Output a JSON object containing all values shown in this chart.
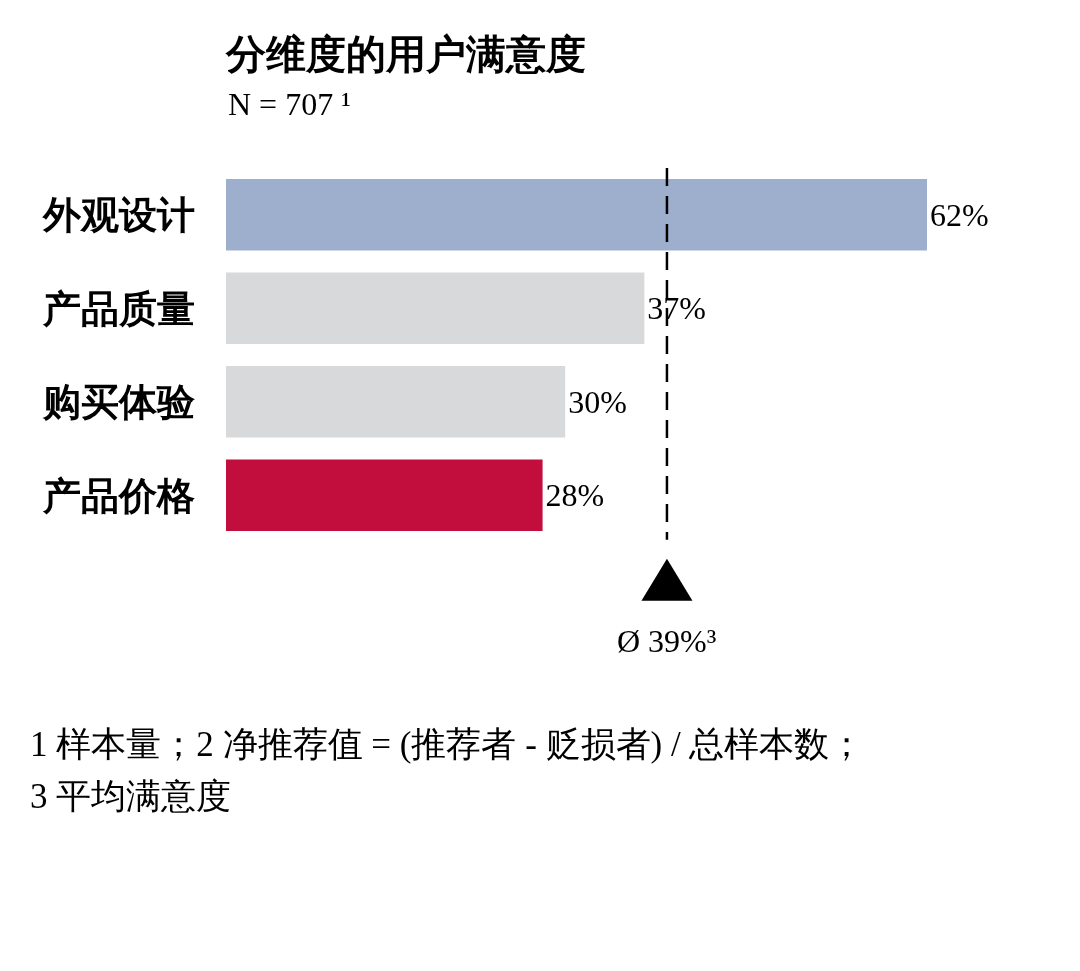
{
  "chart_data": {
    "type": "bar",
    "orientation": "horizontal",
    "title": "分维度的用户满意度",
    "subtitle": "N = 707 ¹",
    "categories": [
      "外观设计",
      "产品质量",
      "购买体验",
      "产品价格"
    ],
    "values": [
      62,
      37,
      30,
      28
    ],
    "colors": [
      "#9dafcd",
      "#d8d9db",
      "#d8d9db",
      "#c10e3c"
    ],
    "value_labels": [
      "62%",
      "37%",
      "30%",
      "28%"
    ],
    "ref_lines": [
      {
        "axis": "x",
        "value": 39,
        "label": "Ø 39%³",
        "color": "#000000",
        "line_style": "dashed"
      }
    ],
    "annotations": [
      "1 样本量；2 净推荐值 = (推荐者 - 贬损者) / 总样本数；",
      "3 平均满意度"
    ],
    "tick_labels": "y"
  }
}
